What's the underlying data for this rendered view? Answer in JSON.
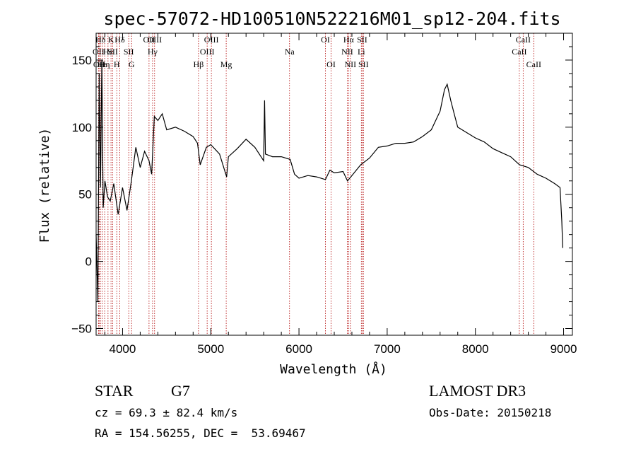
{
  "chart_data": {
    "type": "line",
    "title": "spec-57072-HD100510N522216M01_sp12-204.fits",
    "xlabel": "Wavelength (Å)",
    "ylabel": "Flux (relative)",
    "xlim": [
      3700,
      9100
    ],
    "ylim": [
      -55,
      170
    ],
    "xticks": [
      4000,
      5000,
      6000,
      7000,
      8000,
      9000
    ],
    "yticks": [
      -50,
      0,
      50,
      100,
      150
    ],
    "grid": false,
    "series": [
      {
        "points": [
          [
            3700,
            20
          ],
          [
            3720,
            -30
          ],
          [
            3735,
            140
          ],
          [
            3750,
            55
          ],
          [
            3765,
            150
          ],
          [
            3780,
            40
          ],
          [
            3800,
            60
          ],
          [
            3830,
            48
          ],
          [
            3860,
            45
          ],
          [
            3900,
            58
          ],
          [
            3950,
            35
          ],
          [
            4000,
            55
          ],
          [
            4050,
            38
          ],
          [
            4100,
            60
          ],
          [
            4150,
            85
          ],
          [
            4200,
            70
          ],
          [
            4250,
            82
          ],
          [
            4300,
            75
          ],
          [
            4330,
            65
          ],
          [
            4360,
            108
          ],
          [
            4400,
            105
          ],
          [
            4450,
            110
          ],
          [
            4500,
            98
          ],
          [
            4600,
            100
          ],
          [
            4700,
            97
          ],
          [
            4800,
            93
          ],
          [
            4850,
            88
          ],
          [
            4880,
            72
          ],
          [
            4950,
            85
          ],
          [
            5000,
            87
          ],
          [
            5100,
            80
          ],
          [
            5180,
            63
          ],
          [
            5200,
            78
          ],
          [
            5300,
            84
          ],
          [
            5400,
            91
          ],
          [
            5500,
            85
          ],
          [
            5600,
            75
          ],
          [
            5610,
            120
          ],
          [
            5620,
            80
          ],
          [
            5700,
            78
          ],
          [
            5800,
            78
          ],
          [
            5900,
            76
          ],
          [
            5950,
            65
          ],
          [
            6000,
            62
          ],
          [
            6100,
            64
          ],
          [
            6200,
            63
          ],
          [
            6300,
            61
          ],
          [
            6350,
            68
          ],
          [
            6400,
            66
          ],
          [
            6500,
            67
          ],
          [
            6550,
            60
          ],
          [
            6600,
            64
          ],
          [
            6700,
            72
          ],
          [
            6800,
            77
          ],
          [
            6900,
            85
          ],
          [
            7000,
            86
          ],
          [
            7100,
            88
          ],
          [
            7200,
            88
          ],
          [
            7300,
            89
          ],
          [
            7400,
            93
          ],
          [
            7500,
            98
          ],
          [
            7600,
            112
          ],
          [
            7650,
            128
          ],
          [
            7680,
            132
          ],
          [
            7720,
            120
          ],
          [
            7760,
            110
          ],
          [
            7800,
            100
          ],
          [
            7900,
            96
          ],
          [
            8000,
            92
          ],
          [
            8100,
            89
          ],
          [
            8200,
            84
          ],
          [
            8300,
            81
          ],
          [
            8400,
            78
          ],
          [
            8500,
            72
          ],
          [
            8600,
            70
          ],
          [
            8700,
            65
          ],
          [
            8800,
            62
          ],
          [
            8900,
            58
          ],
          [
            8960,
            55
          ],
          [
            8980,
            30
          ],
          [
            8990,
            10
          ]
        ]
      }
    ],
    "lines": [
      {
        "wl": 3750,
        "label": "Hδ",
        "row": 0
      },
      {
        "wl": 3727,
        "label": "OII",
        "row": 1
      },
      {
        "wl": 3734,
        "label": "OII",
        "row": 2
      },
      {
        "wl": 3770,
        "label": "Hε",
        "row": 2
      },
      {
        "wl": 3797,
        "label": "Hη",
        "row": 2
      },
      {
        "wl": 3835,
        "label": "He",
        "row": 1
      },
      {
        "wl": 3869,
        "label": "K",
        "row": 0
      },
      {
        "wl": 3889,
        "label": "SII",
        "row": 1
      },
      {
        "wl": 3934,
        "label": "H",
        "row": 2
      },
      {
        "wl": 3968,
        "label": "Hδ",
        "row": 0
      },
      {
        "wl": 4070,
        "label": "SII",
        "row": 1
      },
      {
        "wl": 4102,
        "label": "G",
        "row": 2
      },
      {
        "wl": 4300,
        "label": "OII",
        "row": 0
      },
      {
        "wl": 4340,
        "label": "Hγ",
        "row": 1
      },
      {
        "wl": 4363,
        "label": "OIII",
        "row": 0
      },
      {
        "wl": 4861,
        "label": "Hβ",
        "row": 2
      },
      {
        "wl": 4959,
        "label": "OIII",
        "row": 1
      },
      {
        "wl": 5007,
        "label": "OIII",
        "row": 0
      },
      {
        "wl": 5175,
        "label": "Mg",
        "row": 2
      },
      {
        "wl": 5893,
        "label": "Na",
        "row": 1
      },
      {
        "wl": 6300,
        "label": "OI",
        "row": 0
      },
      {
        "wl": 6364,
        "label": "OI",
        "row": 2
      },
      {
        "wl": 6548,
        "label": "NII",
        "row": 1
      },
      {
        "wl": 6563,
        "label": "Hα",
        "row": 0
      },
      {
        "wl": 6583,
        "label": "NII",
        "row": 2
      },
      {
        "wl": 6707,
        "label": "Li",
        "row": 1
      },
      {
        "wl": 6716,
        "label": "SII",
        "row": 0
      },
      {
        "wl": 6731,
        "label": "SII",
        "row": 2
      },
      {
        "wl": 8498,
        "label": "CaII",
        "row": 1
      },
      {
        "wl": 8542,
        "label": "CaII",
        "row": 0
      },
      {
        "wl": 8662,
        "label": "CaII",
        "row": 2
      }
    ]
  },
  "info": {
    "class_label": "STAR",
    "subclass": "G7",
    "survey": "LAMOST DR3",
    "cz": "cz = 69.3 ± 82.4 km/s",
    "obs_date": "Obs-Date: 20150218",
    "coords": "RA = 154.56255, DEC =  53.69467"
  },
  "colors": {
    "spectrum": "#000000",
    "lines": "#b00000",
    "axes": "#000000"
  }
}
